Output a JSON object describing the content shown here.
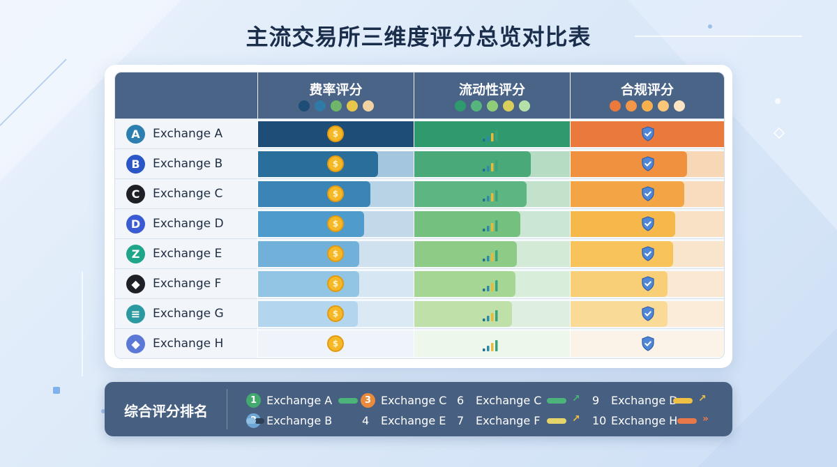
{
  "title": "主流交易所三维度评分总览对比表",
  "chart_data": {
    "type": "table",
    "columns": [
      {
        "label": "费率评分",
        "dot_colors": [
          "#1e4e78",
          "#2f7aa6",
          "#6fb56a",
          "#e8c64a",
          "#f1d3a3"
        ]
      },
      {
        "label": "流动性评分",
        "dot_colors": [
          "#2f9a6e",
          "#56b47d",
          "#8fcd7a",
          "#d9cf5a",
          "#b5e0a7"
        ]
      },
      {
        "label": "合规评分",
        "dot_colors": [
          "#ea7a3c",
          "#f2964a",
          "#f6b04e",
          "#f8c77a",
          "#fbe3c4"
        ]
      }
    ],
    "rows": [
      {
        "name": "Exchange A",
        "initial": "A",
        "logo_color": "#2d7fb0",
        "fee": 1.0,
        "liquidity": 1.0,
        "compliance": 1.0
      },
      {
        "name": "Exchange B",
        "initial": "B",
        "logo_color": "#2a56c6",
        "fee": 0.77,
        "liquidity": 0.75,
        "compliance": 0.76
      },
      {
        "name": "Exchange C",
        "initial": "C",
        "logo_color": "#1f1f28",
        "fee": 0.72,
        "liquidity": 0.72,
        "compliance": 0.74
      },
      {
        "name": "Exchange D",
        "initial": "D",
        "logo_color": "#3a5bd1",
        "fee": 0.68,
        "liquidity": 0.68,
        "compliance": 0.68
      },
      {
        "name": "Exchange E",
        "initial": "Z",
        "logo_color": "#1fa58a",
        "fee": 0.65,
        "liquidity": 0.66,
        "compliance": 0.67
      },
      {
        "name": "Exchange F",
        "initial": "◆",
        "logo_color": "#1f1f28",
        "fee": 0.65,
        "liquidity": 0.65,
        "compliance": 0.63
      },
      {
        "name": "Exchange G",
        "initial": "≡",
        "logo_color": "#2b9aa0",
        "fee": 0.64,
        "liquidity": 0.63,
        "compliance": 0.63
      },
      {
        "name": "Exchange H",
        "initial": "◆",
        "logo_color": "#5b78d6",
        "fee": 0.0,
        "liquidity": 0.0,
        "compliance": 0.0
      }
    ]
  },
  "ranking": {
    "title": "综合评分排名",
    "items": [
      {
        "rank": "1",
        "name": "Exchange A",
        "badge_color": "#43a96e",
        "pill_color": "#4cb37a",
        "arrow": ""
      },
      {
        "rank": "2",
        "name": "Exchange B",
        "badge_color": "#6fa7d4",
        "pill_color": "#8fc0e4",
        "arrow": ""
      },
      {
        "rank": "3",
        "name": "Exchange C",
        "badge_color": "#ea8a3c",
        "pill_color": "",
        "arrow": ""
      },
      {
        "rank": "4",
        "name": "Exchange E",
        "badge_color": "",
        "pill_color": "",
        "arrow": ""
      },
      {
        "rank": "6",
        "name": "Exchange C",
        "badge_color": "",
        "pill_color": "#4cb37a",
        "arrow": "↗"
      },
      {
        "rank": "7",
        "name": "Exchange F",
        "badge_color": "",
        "pill_color": "#e5d46a",
        "arrow": "↗"
      },
      {
        "rank": "9",
        "name": "Exchange D",
        "badge_color": "",
        "pill_color": "#f0bf45",
        "arrow": "↗"
      },
      {
        "rank": "10",
        "name": "Exchange H",
        "badge_color": "",
        "pill_color": "#e8774a",
        "arrow": "»"
      }
    ]
  }
}
